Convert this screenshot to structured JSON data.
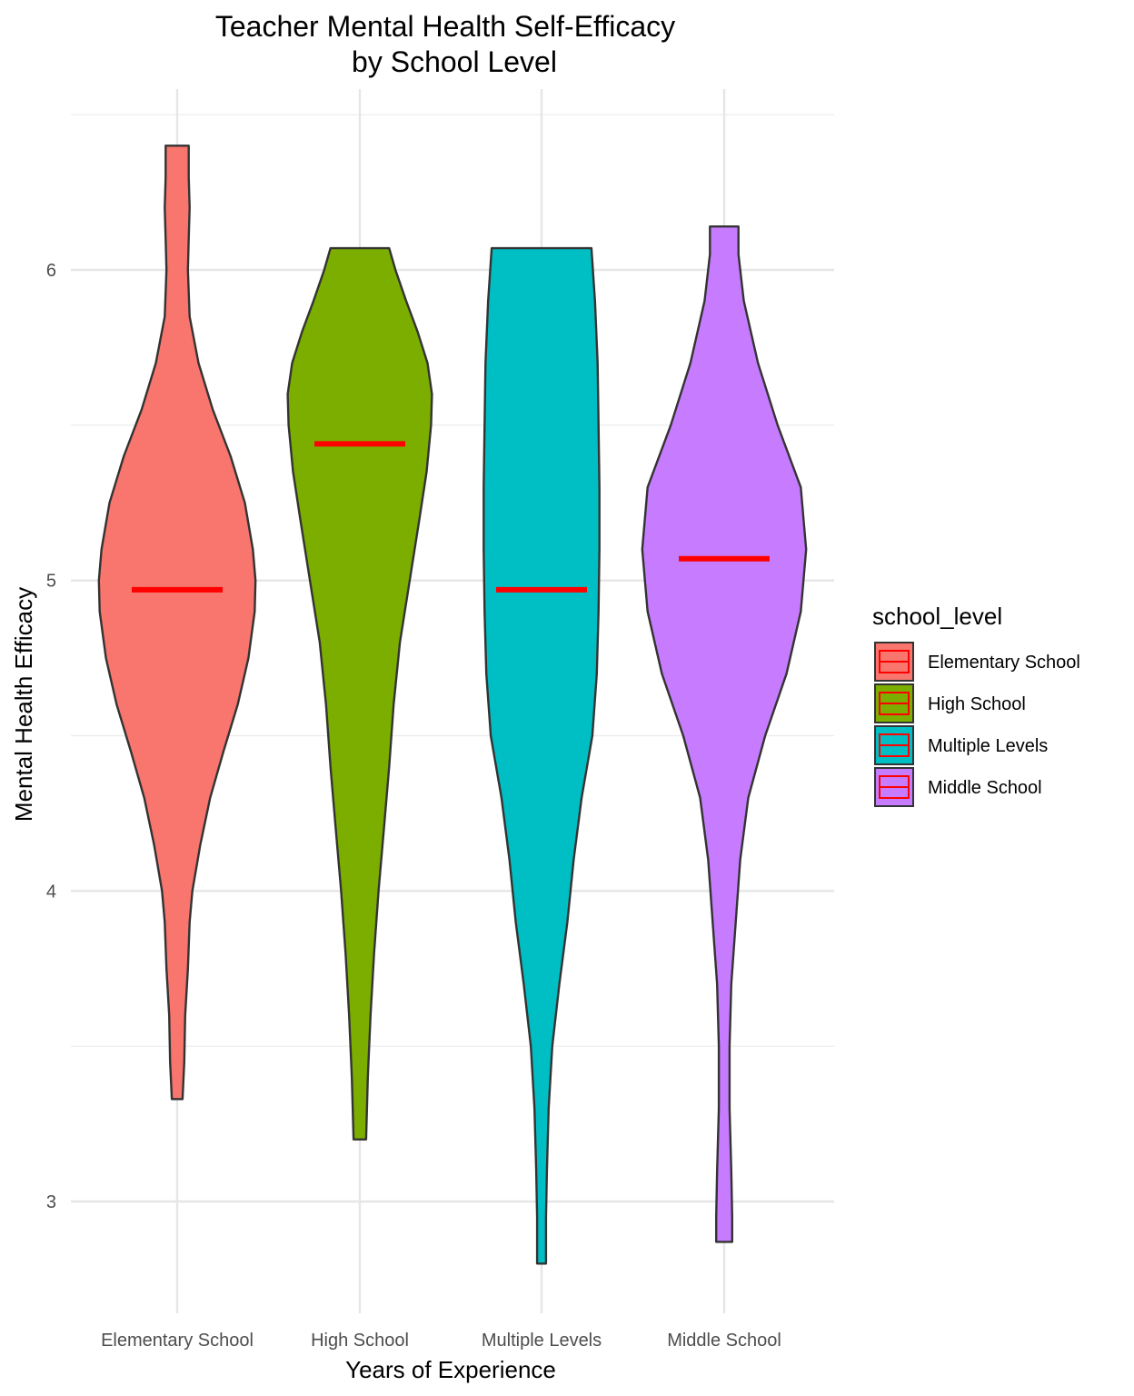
{
  "chart_data": {
    "type": "violin",
    "title_line1": "Teacher Mental Health Self-Efficacy",
    "title_line2": "by School Level",
    "xlabel": "Years of Experience",
    "ylabel": "Mental Health Efficacy",
    "ylim": [
      2.65,
      6.55
    ],
    "y_ticks": [
      3,
      4,
      5,
      6
    ],
    "y_tick_labels": [
      "3",
      "4",
      "5",
      "6"
    ],
    "grid": true,
    "legend": {
      "title": "school_level",
      "placement": "right"
    },
    "categories": [
      "Elementary School",
      "High School",
      "Multiple Levels",
      "Middle School"
    ],
    "median_color": "#ff0000",
    "outline_color": "#333333",
    "series": [
      {
        "name": "Elementary School",
        "color": "#F8766D",
        "median": 4.97,
        "profile": [
          [
            3.33,
            0.06
          ],
          [
            3.45,
            0.08
          ],
          [
            3.6,
            0.09
          ],
          [
            3.75,
            0.12
          ],
          [
            3.9,
            0.14
          ],
          [
            4.0,
            0.17
          ],
          [
            4.15,
            0.26
          ],
          [
            4.3,
            0.37
          ],
          [
            4.45,
            0.52
          ],
          [
            4.6,
            0.68
          ],
          [
            4.75,
            0.8
          ],
          [
            4.9,
            0.87
          ],
          [
            5.0,
            0.88
          ],
          [
            5.1,
            0.85
          ],
          [
            5.25,
            0.76
          ],
          [
            5.4,
            0.6
          ],
          [
            5.55,
            0.4
          ],
          [
            5.7,
            0.24
          ],
          [
            5.85,
            0.14
          ],
          [
            6.0,
            0.12
          ],
          [
            6.1,
            0.13
          ],
          [
            6.2,
            0.14
          ],
          [
            6.3,
            0.13
          ],
          [
            6.4,
            0.13
          ]
        ]
      },
      {
        "name": "High School",
        "color": "#7CAE00",
        "median": 5.44,
        "profile": [
          [
            3.2,
            0.07
          ],
          [
            3.4,
            0.09
          ],
          [
            3.6,
            0.12
          ],
          [
            3.8,
            0.16
          ],
          [
            4.0,
            0.21
          ],
          [
            4.2,
            0.27
          ],
          [
            4.4,
            0.33
          ],
          [
            4.6,
            0.38
          ],
          [
            4.8,
            0.45
          ],
          [
            5.0,
            0.56
          ],
          [
            5.2,
            0.67
          ],
          [
            5.35,
            0.75
          ],
          [
            5.5,
            0.8
          ],
          [
            5.6,
            0.81
          ],
          [
            5.7,
            0.76
          ],
          [
            5.8,
            0.65
          ],
          [
            5.9,
            0.52
          ],
          [
            6.0,
            0.4
          ],
          [
            6.07,
            0.33
          ]
        ]
      },
      {
        "name": "Multiple Levels",
        "color": "#00BFC4",
        "median": 4.97,
        "profile": [
          [
            2.8,
            0.05
          ],
          [
            2.95,
            0.05
          ],
          [
            3.1,
            0.06
          ],
          [
            3.3,
            0.08
          ],
          [
            3.5,
            0.12
          ],
          [
            3.7,
            0.2
          ],
          [
            3.9,
            0.29
          ],
          [
            4.1,
            0.36
          ],
          [
            4.3,
            0.45
          ],
          [
            4.5,
            0.57
          ],
          [
            4.7,
            0.62
          ],
          [
            4.9,
            0.64
          ],
          [
            5.1,
            0.65
          ],
          [
            5.3,
            0.65
          ],
          [
            5.5,
            0.64
          ],
          [
            5.7,
            0.63
          ],
          [
            5.9,
            0.6
          ],
          [
            6.07,
            0.56
          ]
        ]
      },
      {
        "name": "Middle School",
        "color": "#C77CFF",
        "median": 5.07,
        "profile": [
          [
            2.87,
            0.09
          ],
          [
            2.95,
            0.09
          ],
          [
            3.1,
            0.08
          ],
          [
            3.3,
            0.06
          ],
          [
            3.5,
            0.06
          ],
          [
            3.7,
            0.08
          ],
          [
            3.9,
            0.13
          ],
          [
            4.1,
            0.18
          ],
          [
            4.3,
            0.27
          ],
          [
            4.5,
            0.46
          ],
          [
            4.7,
            0.7
          ],
          [
            4.9,
            0.86
          ],
          [
            5.1,
            0.92
          ],
          [
            5.3,
            0.86
          ],
          [
            5.5,
            0.6
          ],
          [
            5.7,
            0.38
          ],
          [
            5.9,
            0.22
          ],
          [
            6.05,
            0.16
          ],
          [
            6.14,
            0.16
          ]
        ]
      }
    ]
  }
}
